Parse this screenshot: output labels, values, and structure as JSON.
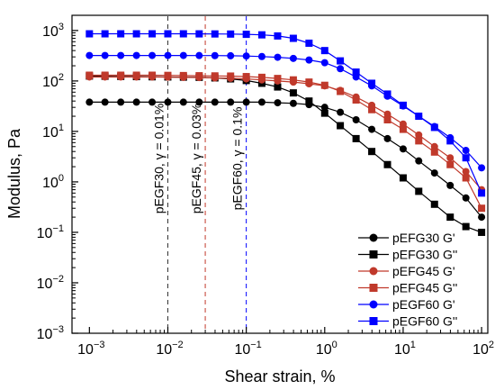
{
  "chart_data": {
    "type": "scatter",
    "xlabel": "Shear strain, %",
    "ylabel": "Modulus, Pa",
    "xscale": "log",
    "yscale": "log",
    "xlim": [
      0.0006,
      120
    ],
    "ylim": [
      0.001,
      2000
    ],
    "x_ticks": [
      {
        "value": 0.001,
        "base": "10",
        "exp": "−3"
      },
      {
        "value": 0.01,
        "base": "10",
        "exp": "−2"
      },
      {
        "value": 0.1,
        "base": "10",
        "exp": "−1"
      },
      {
        "value": 1,
        "base": "10",
        "exp": "0"
      },
      {
        "value": 10,
        "base": "10",
        "exp": "1"
      },
      {
        "value": 100,
        "base": "10",
        "exp": "2"
      }
    ],
    "y_ticks": [
      {
        "value": 0.001,
        "base": "10",
        "exp": "−3"
      },
      {
        "value": 0.01,
        "base": "10",
        "exp": "−2"
      },
      {
        "value": 0.1,
        "base": "10",
        "exp": "−1"
      },
      {
        "value": 1,
        "base": "10",
        "exp": "0"
      },
      {
        "value": 10,
        "base": "10",
        "exp": "1"
      },
      {
        "value": 100,
        "base": "10",
        "exp": "2"
      },
      {
        "value": 1000,
        "base": "10",
        "exp": "3"
      }
    ],
    "x": [
      0.001,
      0.00158,
      0.00251,
      0.00398,
      0.00631,
      0.01,
      0.0158,
      0.0251,
      0.0398,
      0.0631,
      0.1,
      0.158,
      0.251,
      0.398,
      0.631,
      1,
      1.58,
      2.51,
      3.98,
      6.31,
      10,
      15.8,
      25.1,
      39.8,
      63.1,
      100
    ],
    "series": [
      {
        "name": "pEFG30 G'",
        "color": "#000000",
        "marker": "circle",
        "values": [
          38,
          38,
          38,
          38,
          38,
          38,
          38,
          38,
          38,
          38,
          38,
          38,
          37,
          36,
          34,
          30,
          24,
          17,
          11,
          7.2,
          4.5,
          2.6,
          1.5,
          0.85,
          0.48,
          0.2
        ]
      },
      {
        "name": "pEFG30 G''",
        "color": "#000000",
        "marker": "square",
        "values": [
          125,
          124,
          123,
          122,
          121,
          120,
          119,
          118,
          115,
          110,
          102,
          90,
          76,
          58,
          40,
          23,
          13,
          7.2,
          4,
          2.2,
          1.2,
          0.65,
          0.36,
          0.2,
          0.13,
          0.1
        ]
      },
      {
        "name": "pEFG45 G'",
        "color": "#c0392b",
        "marker": "circle",
        "values": [
          120,
          120,
          120,
          120,
          120,
          119,
          118,
          117,
          115,
          113,
          110,
          105,
          100,
          95,
          88,
          80,
          65,
          48,
          33,
          22,
          14,
          8.5,
          5,
          3,
          1.6,
          0.7
        ]
      },
      {
        "name": "pEFG45 G''",
        "color": "#c0392b",
        "marker": "square",
        "values": [
          130,
          130,
          130,
          130,
          130,
          129,
          128,
          127,
          126,
          125,
          122,
          118,
          112,
          105,
          95,
          82,
          62,
          42,
          27,
          17,
          11,
          6.5,
          3.9,
          2.2,
          1.2,
          0.3
        ]
      },
      {
        "name": "pEGF60 G'",
        "color": "#0000ff",
        "marker": "circle",
        "values": [
          320,
          320,
          320,
          320,
          320,
          320,
          320,
          319,
          318,
          316,
          312,
          305,
          295,
          280,
          260,
          230,
          175,
          120,
          80,
          50,
          32,
          20,
          12.5,
          7.5,
          4.2,
          1.9
        ]
      },
      {
        "name": "pEGF60 G''",
        "color": "#0000ff",
        "marker": "square",
        "values": [
          860,
          860,
          860,
          860,
          860,
          860,
          860,
          858,
          855,
          850,
          840,
          820,
          780,
          700,
          560,
          400,
          250,
          150,
          90,
          55,
          33,
          20,
          12,
          6.5,
          3,
          0.6
        ]
      }
    ],
    "reference_lines": [
      {
        "x": 0.01,
        "color": "#333333",
        "label": "pEGF30, γ = 0.01%"
      },
      {
        "x": 0.03,
        "color": "#c0392b",
        "label": "pEGF45, γ = 0.03%"
      },
      {
        "x": 0.1,
        "color": "#0000ff",
        "label": "pEGF60, γ = 0.1%"
      }
    ],
    "legend_placement": "bottom-right",
    "grid": false
  }
}
